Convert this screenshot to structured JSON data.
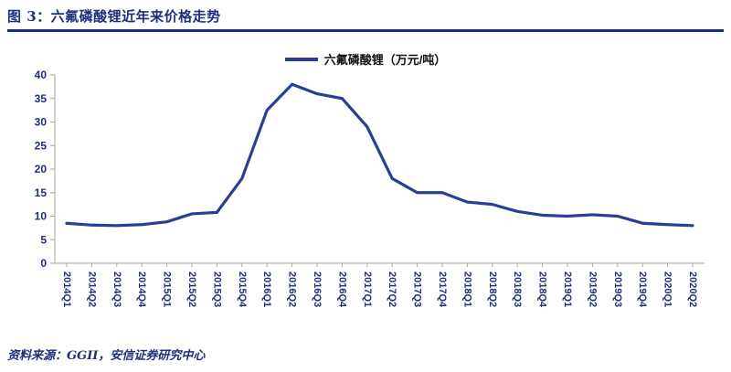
{
  "header": {
    "title": "图 3：六氟磷酸锂近年来价格走势"
  },
  "legend": {
    "label": "六氟磷酸锂（万元/吨）"
  },
  "footer": {
    "source": "资料来源：GGII，安信证券研究中心"
  },
  "colors": {
    "navy": "#1F2F7E",
    "line": "#2B3E95",
    "axis": "#A6A6A6"
  },
  "chart_data": {
    "type": "line",
    "title": "六氟磷酸锂近年来价格走势",
    "series_name": "六氟磷酸锂（万元/吨）",
    "categories": [
      "2014Q1",
      "2014Q2",
      "2014Q3",
      "2014Q4",
      "2015Q1",
      "2015Q2",
      "2015Q3",
      "2015Q4",
      "2016Q1",
      "2016Q2",
      "2016Q3",
      "2016Q4",
      "2017Q1",
      "2017Q2",
      "2017Q3",
      "2017Q4",
      "2018Q1",
      "2018Q2",
      "2018Q3",
      "2018Q4",
      "2019Q1",
      "2019Q2",
      "2019Q3",
      "2019Q4",
      "2020Q1",
      "2020Q2"
    ],
    "values": [
      8.5,
      8.1,
      8.0,
      8.2,
      8.8,
      10.5,
      10.8,
      18.0,
      32.5,
      38.0,
      36.0,
      35.0,
      29.0,
      18.0,
      15.0,
      15.0,
      13.0,
      12.5,
      11.0,
      10.2,
      10.0,
      10.3,
      10.0,
      8.5,
      8.2,
      8.0
    ],
    "xlabel": "",
    "ylabel": "",
    "ylim": [
      0,
      40
    ],
    "ytick_step": 5,
    "grid": false,
    "legend_position": "top-center"
  }
}
